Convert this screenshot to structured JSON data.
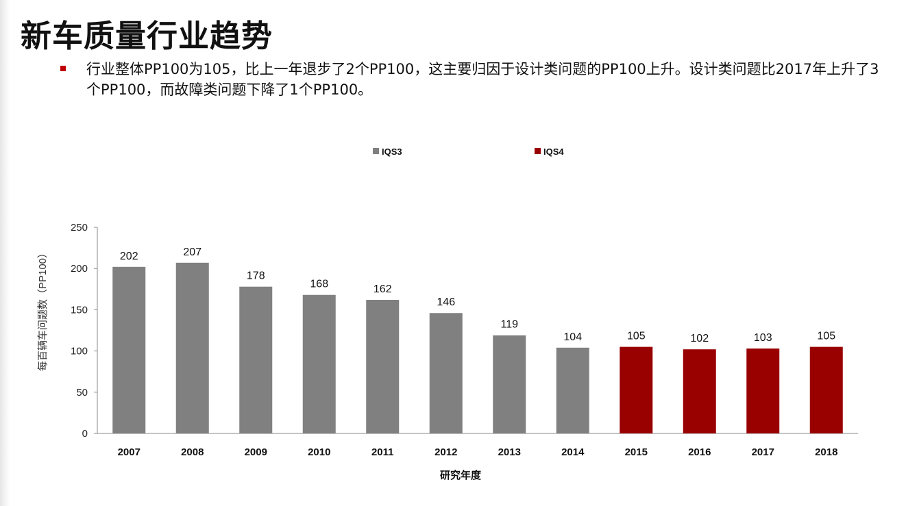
{
  "slide": {
    "title": "新车质量行业趋势",
    "bullet": "行业整体PP100为105，比上一年退步了2个PP100，这主要归因于设计类问题的PP100上升。设计类问题比2017年上升了3个PP100，而故障类问题下降了1个PP100。",
    "bullet_color": "#c00000"
  },
  "chart_data": {
    "type": "bar",
    "categories": [
      "2007",
      "2008",
      "2009",
      "2010",
      "2011",
      "2012",
      "2013",
      "2014",
      "2015",
      "2016",
      "2017",
      "2018"
    ],
    "values": [
      202,
      207,
      178,
      168,
      162,
      146,
      119,
      104,
      105,
      102,
      103,
      105
    ],
    "series_of_category": [
      "IQS3",
      "IQS3",
      "IQS3",
      "IQS3",
      "IQS3",
      "IQS3",
      "IQS3",
      "IQS3",
      "IQS4",
      "IQS4",
      "IQS4",
      "IQS4"
    ],
    "legend": [
      {
        "name": "IQS3",
        "color": "#808080"
      },
      {
        "name": "IQS4",
        "color": "#990000"
      }
    ],
    "legend_placement": "top",
    "xlabel": "研究年度",
    "ylabel": "每百辆车问题数（PP100）",
    "ylim": [
      0,
      250
    ],
    "yticks": [
      0,
      50,
      100,
      150,
      200,
      250
    ],
    "grid": false,
    "data_labels": true
  }
}
